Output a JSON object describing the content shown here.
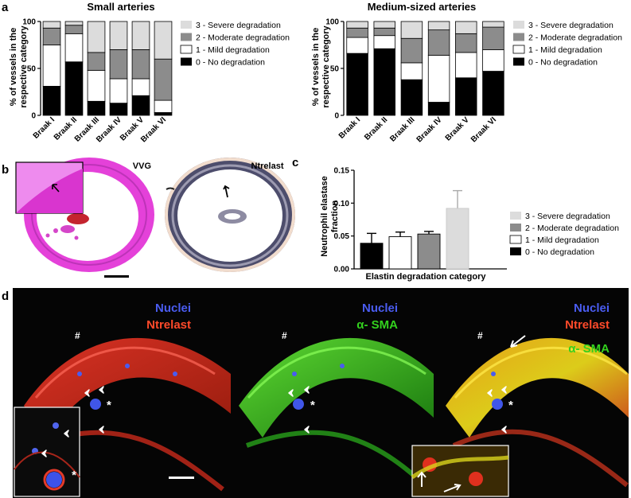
{
  "figure": {
    "panel_letters": [
      "a",
      "b",
      "c",
      "d"
    ]
  },
  "chart_data": [
    {
      "type": "bar",
      "stacked": true,
      "title": "Small arteries",
      "ylabel": "% of vessels in the respective category",
      "ylabel_lines": [
        "% of vessels in the",
        "respective category"
      ],
      "categories": [
        "Braak I",
        "Braak II",
        "Braak III",
        "Braak IV",
        "Braak V",
        "Braak VI"
      ],
      "ylim": [
        0,
        100
      ],
      "yticks": [
        0,
        50,
        100
      ],
      "series": [
        {
          "name": "0 - No degradation",
          "color": "#000000",
          "values": [
            31,
            57,
            15,
            13,
            21,
            3
          ]
        },
        {
          "name": "1 - Mild degradation",
          "color": "#ffffff",
          "values": [
            44,
            30,
            33,
            26,
            18,
            13
          ]
        },
        {
          "name": "2 - Moderate degradation",
          "color": "#8c8c8c",
          "values": [
            18,
            9,
            19,
            31,
            31,
            44
          ]
        },
        {
          "name": "3 - Severe degradation",
          "color": "#dcdcdc",
          "values": [
            7,
            4,
            33,
            30,
            30,
            40
          ]
        }
      ],
      "legend": "right",
      "legend_order": [
        3,
        2,
        1,
        0
      ]
    },
    {
      "type": "bar",
      "stacked": true,
      "title": "Medium-sized arteries",
      "ylabel": "% of vessels in the respective category",
      "ylabel_lines": [
        "% of vessels in the",
        "respective category"
      ],
      "categories": [
        "Braak I",
        "Braak II",
        "Braak III",
        "Braak IV",
        "Braak V",
        "Braak VI"
      ],
      "ylim": [
        0,
        100
      ],
      "yticks": [
        0,
        50,
        100
      ],
      "series": [
        {
          "name": "0 - No degradation",
          "color": "#000000",
          "values": [
            66,
            71,
            38,
            14,
            40,
            47
          ]
        },
        {
          "name": "1 - Mild degradation",
          "color": "#ffffff",
          "values": [
            17,
            14,
            18,
            50,
            27,
            23
          ]
        },
        {
          "name": "2 - Moderate degradation",
          "color": "#8c8c8c",
          "values": [
            10,
            8,
            26,
            27,
            20,
            24
          ]
        },
        {
          "name": "3 - Severe degradation",
          "color": "#dcdcdc",
          "values": [
            7,
            7,
            18,
            9,
            13,
            6
          ]
        }
      ],
      "legend": "right",
      "legend_order": [
        3,
        2,
        1,
        0
      ]
    },
    {
      "type": "bar",
      "title": "",
      "ylabel": "Neutrophil elastase fraction",
      "ylabel_lines": [
        "Neutrophil elastase",
        "fraction"
      ],
      "xlabel": "Elastin degradation category",
      "categories": [
        "0 - No degradation",
        "1 - Mild degradation",
        "2 - Moderate degradation",
        "3 - Severe degradation"
      ],
      "values": [
        0.039,
        0.049,
        0.053,
        0.092
      ],
      "errors": [
        0.015,
        0.007,
        0.004,
        0.027
      ],
      "colors": [
        "#000000",
        "#ffffff",
        "#8c8c8c",
        "#dcdcdc"
      ],
      "ylim": [
        0,
        0.15
      ],
      "yticks": [
        "0.00",
        "0.05",
        "0.10",
        "0.15"
      ],
      "legend": "right",
      "legend_order": [
        3,
        2,
        1,
        0
      ]
    }
  ],
  "panel_b": {
    "left_stain": "VVG",
    "right_stain": "Ntrelast"
  },
  "panel_d": {
    "left": [
      {
        "text": "Nuclei",
        "color": "#4a5cf0"
      },
      {
        "text": "Ntrelast",
        "color": "#ff4a2a"
      }
    ],
    "middle": [
      {
        "text": "Nuclei",
        "color": "#4a5cf0"
      },
      {
        "text": "α- SMA",
        "color": "#33d11e"
      }
    ],
    "right": [
      {
        "text": "Nuclei",
        "color": "#4a5cf0"
      },
      {
        "text": "Ntrelast",
        "color": "#ff4a2a"
      },
      {
        "text": "α- SMA",
        "color": "#33d11e"
      }
    ],
    "hash": "#",
    "asterisk": "*"
  }
}
